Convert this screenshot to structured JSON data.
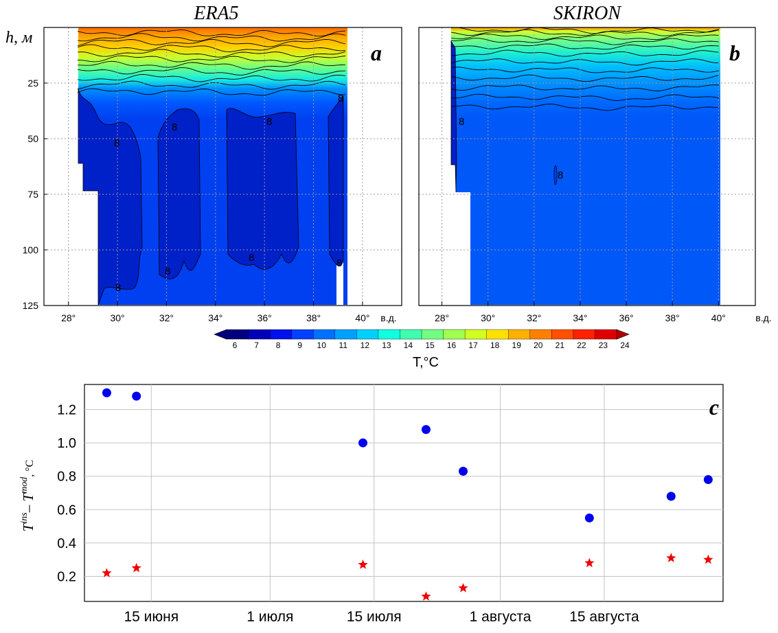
{
  "chart_data": [
    {
      "type": "heatmap",
      "panel_label": "a",
      "title": "ERA5",
      "ylabel": "h, м",
      "xunit": "в.д.",
      "yticks": [
        "25",
        "50",
        "75",
        "100",
        "125"
      ],
      "xticks": [
        "28°",
        "30°",
        "32°",
        "34°",
        "36°",
        "38°",
        "40°"
      ],
      "contour_labels": [
        "8",
        "8",
        "8",
        "8",
        "8",
        "8",
        "8",
        "8"
      ],
      "xlim": [
        27,
        41.6
      ],
      "ylim": [
        0,
        125
      ],
      "grid": true
    },
    {
      "type": "heatmap",
      "panel_label": "b",
      "title": "SKIRON",
      "xunit": "в.д.",
      "xticks": [
        "28°",
        "30°",
        "32°",
        "34°",
        "36°",
        "38°",
        "40°"
      ],
      "contour_labels": [
        "8",
        "8"
      ],
      "xlim": [
        27,
        41.6
      ],
      "ylim": [
        0,
        125
      ],
      "grid": true
    },
    {
      "type": "colorbar",
      "label": "T,°C",
      "ticks": [
        "6",
        "7",
        "8",
        "9",
        "10",
        "11",
        "12",
        "13",
        "14",
        "15",
        "16",
        "17",
        "18",
        "19",
        "20",
        "21",
        "22",
        "23",
        "24"
      ],
      "colors": [
        "#00007f",
        "#0000b8",
        "#0010ee",
        "#0040ff",
        "#0070ff",
        "#00a0ff",
        "#00d0ff",
        "#10ffe0",
        "#40ffb0",
        "#70ff80",
        "#a0ff50",
        "#d0ff20",
        "#ffe000",
        "#ffb000",
        "#ff8000",
        "#ff5000",
        "#ff2000",
        "#e00000",
        "#b00000"
      ]
    },
    {
      "type": "scatter",
      "panel_label": "c",
      "ylabel_base": "T",
      "ylabel_sup1": "ins",
      "ylabel_mid": "– T",
      "ylabel_sup2": "mod",
      "ylabel_unit": ", °C",
      "ylim": [
        0.05,
        1.35
      ],
      "yticks": [
        0.2,
        0.4,
        0.6,
        0.8,
        1.0,
        1.2
      ],
      "ytick_labels": [
        "0.2",
        "0.4",
        "0.6",
        "0.8",
        "1.0",
        "1.2"
      ],
      "x_tick_days": [
        14,
        30,
        44,
        61,
        75
      ],
      "x_tick_labels": [
        "15 июня",
        "1 июля",
        "15 июля",
        "1 августа",
        "15 августа"
      ],
      "xlim": [
        5,
        91
      ],
      "grid": true,
      "series": [
        {
          "marker": "circle",
          "color": "#0000ee",
          "x": [
            8,
            12,
            42.5,
            51,
            56,
            73,
            84,
            89
          ],
          "y": [
            1.3,
            1.28,
            1.0,
            1.08,
            0.83,
            0.55,
            0.68,
            0.78
          ]
        },
        {
          "marker": "star",
          "color": "#ee0000",
          "x": [
            8,
            12,
            42.5,
            51,
            56,
            73,
            84,
            89
          ],
          "y": [
            0.22,
            0.25,
            0.27,
            0.08,
            0.13,
            0.28,
            0.31,
            0.3
          ]
        }
      ]
    }
  ]
}
